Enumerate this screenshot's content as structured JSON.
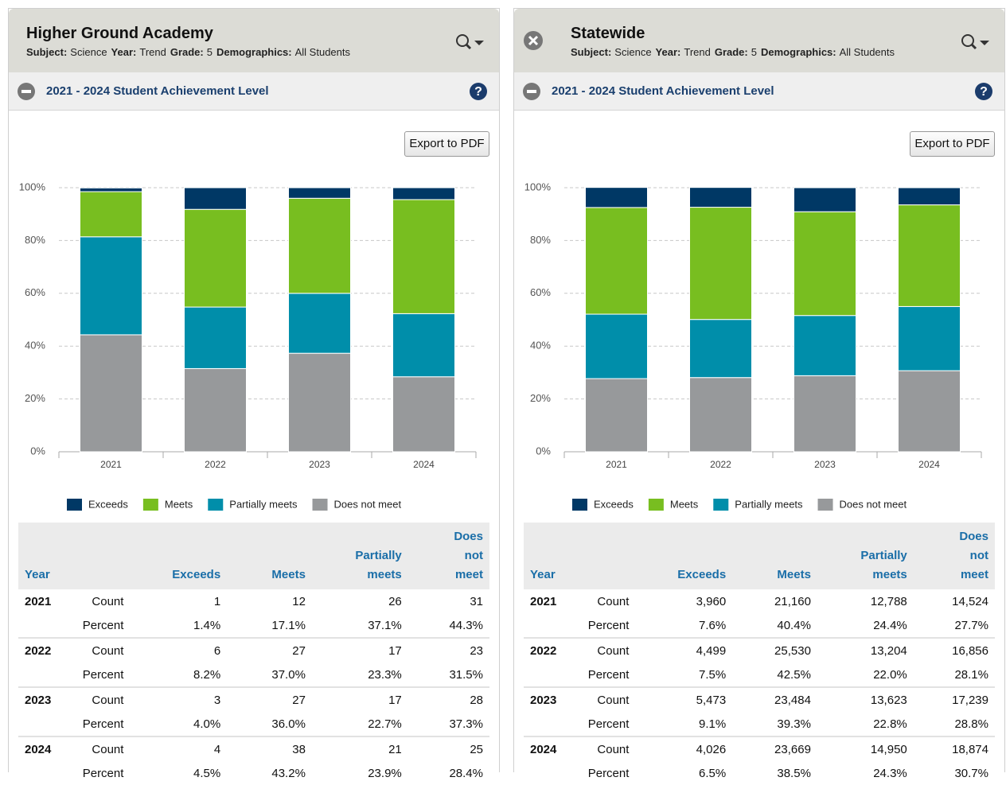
{
  "panels": [
    {
      "title": "Higher Ground Academy",
      "filters": [
        {
          "label": "Subject:",
          "value": "Science"
        },
        {
          "label": "Year:",
          "value": "Trend"
        },
        {
          "label": "Grade:",
          "value": "5"
        },
        {
          "label": "Demographics:",
          "value": "All Students"
        }
      ],
      "section_title": "2021 - 2024 Student Achievement Level",
      "export_button": "Export to PDF",
      "chart_data": {
        "type": "bar",
        "stacked": true,
        "categories": [
          "2021",
          "2022",
          "2023",
          "2024"
        ],
        "series": [
          {
            "name": "Exceeds",
            "color": "#003865",
            "values": [
              1.4,
              8.2,
              4.0,
              4.5
            ]
          },
          {
            "name": "Meets",
            "color": "#78be20",
            "values": [
              17.1,
              37.0,
              36.0,
              43.2
            ]
          },
          {
            "name": "Partially meets",
            "color": "#008eaa",
            "values": [
              37.1,
              23.3,
              22.7,
              23.9
            ]
          },
          {
            "name": "Does not meet",
            "color": "#97999b",
            "values": [
              44.3,
              31.5,
              37.3,
              28.4
            ]
          }
        ],
        "ylim": [
          0,
          100
        ],
        "yticks": [
          {
            "value": 0,
            "label": "0%"
          },
          {
            "value": 20,
            "label": "20%"
          },
          {
            "value": 40,
            "label": "40%"
          },
          {
            "value": 60,
            "label": "60%"
          },
          {
            "value": 80,
            "label": "80%"
          },
          {
            "value": 100,
            "label": "100%"
          }
        ],
        "grid": true,
        "legend": "bottom"
      },
      "table": {
        "year_header": "Year",
        "columns": [
          "Exceeds",
          "Meets",
          "Partially meets",
          "Does not meet"
        ],
        "count_label": "Count",
        "percent_label": "Percent",
        "rows": [
          {
            "year": "2021",
            "counts": [
              "1",
              "12",
              "26",
              "31"
            ],
            "percents": [
              "1.4%",
              "17.1%",
              "37.1%",
              "44.3%"
            ]
          },
          {
            "year": "2022",
            "counts": [
              "6",
              "27",
              "17",
              "23"
            ],
            "percents": [
              "8.2%",
              "37.0%",
              "23.3%",
              "31.5%"
            ]
          },
          {
            "year": "2023",
            "counts": [
              "3",
              "27",
              "17",
              "28"
            ],
            "percents": [
              "4.0%",
              "36.0%",
              "22.7%",
              "37.3%"
            ]
          },
          {
            "year": "2024",
            "counts": [
              "4",
              "38",
              "21",
              "25"
            ],
            "percents": [
              "4.5%",
              "43.2%",
              "23.9%",
              "28.4%"
            ]
          }
        ]
      }
    },
    {
      "title": "Statewide",
      "filters": [
        {
          "label": "Subject:",
          "value": "Science"
        },
        {
          "label": "Year:",
          "value": "Trend"
        },
        {
          "label": "Grade:",
          "value": "5"
        },
        {
          "label": "Demographics:",
          "value": "All Students"
        }
      ],
      "section_title": "2021 - 2024 Student Achievement Level",
      "export_button": "Export to PDF",
      "chart_data": {
        "type": "bar",
        "stacked": true,
        "categories": [
          "2021",
          "2022",
          "2023",
          "2024"
        ],
        "series": [
          {
            "name": "Exceeds",
            "color": "#003865",
            "values": [
              7.6,
              7.5,
              9.1,
              6.5
            ]
          },
          {
            "name": "Meets",
            "color": "#78be20",
            "values": [
              40.4,
              42.5,
              39.3,
              38.5
            ]
          },
          {
            "name": "Partially meets",
            "color": "#008eaa",
            "values": [
              24.4,
              22.0,
              22.8,
              24.3
            ]
          },
          {
            "name": "Does not meet",
            "color": "#97999b",
            "values": [
              27.7,
              28.1,
              28.8,
              30.7
            ]
          }
        ],
        "ylim": [
          0,
          100
        ],
        "yticks": [
          {
            "value": 0,
            "label": "0%"
          },
          {
            "value": 20,
            "label": "20%"
          },
          {
            "value": 40,
            "label": "40%"
          },
          {
            "value": 60,
            "label": "60%"
          },
          {
            "value": 80,
            "label": "80%"
          },
          {
            "value": 100,
            "label": "100%"
          }
        ],
        "grid": true,
        "legend": "bottom"
      },
      "table": {
        "year_header": "Year",
        "columns": [
          "Exceeds",
          "Meets",
          "Partially meets",
          "Does not meet"
        ],
        "count_label": "Count",
        "percent_label": "Percent",
        "rows": [
          {
            "year": "2021",
            "counts": [
              "3,960",
              "21,160",
              "12,788",
              "14,524"
            ],
            "percents": [
              "7.6%",
              "40.4%",
              "24.4%",
              "27.7%"
            ]
          },
          {
            "year": "2022",
            "counts": [
              "4,499",
              "25,530",
              "13,204",
              "16,856"
            ],
            "percents": [
              "7.5%",
              "42.5%",
              "22.0%",
              "28.1%"
            ]
          },
          {
            "year": "2023",
            "counts": [
              "5,473",
              "23,484",
              "13,623",
              "17,239"
            ],
            "percents": [
              "9.1%",
              "39.3%",
              "22.8%",
              "28.8%"
            ]
          },
          {
            "year": "2024",
            "counts": [
              "4,026",
              "23,669",
              "14,950",
              "18,874"
            ],
            "percents": [
              "6.5%",
              "38.5%",
              "24.3%",
              "30.7%"
            ]
          }
        ]
      }
    }
  ]
}
